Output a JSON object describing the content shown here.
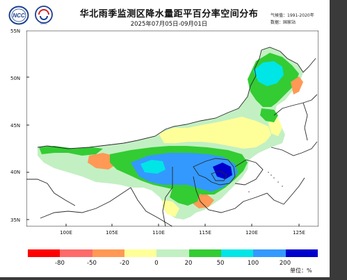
{
  "header": {
    "title": "华北雨季监测区降水量距平百分率空间分布",
    "subtitle": "2025年07月05日-09月01日",
    "meta_period": "气候值：1991-2020年",
    "meta_source": "数据：国家站"
  },
  "logos": {
    "left": "NCC",
    "right": "BCC"
  },
  "map": {
    "lat_labels": [
      "55N",
      "50N",
      "45N",
      "40N",
      "35N"
    ],
    "lon_labels": [
      "100E",
      "105E",
      "110E",
      "115E",
      "120E",
      "125E"
    ]
  },
  "legend": {
    "colors": [
      "#ff0000",
      "#ff6a6a",
      "#ff9955",
      "#ffff99",
      "#c2f0c2",
      "#33cc33",
      "#00e5e5",
      "#3399ff",
      "#0000cc"
    ],
    "labels": [
      "-80",
      "-50",
      "-20",
      "0",
      "20",
      "50",
      "100",
      "200"
    ],
    "unit": "单位：%"
  }
}
